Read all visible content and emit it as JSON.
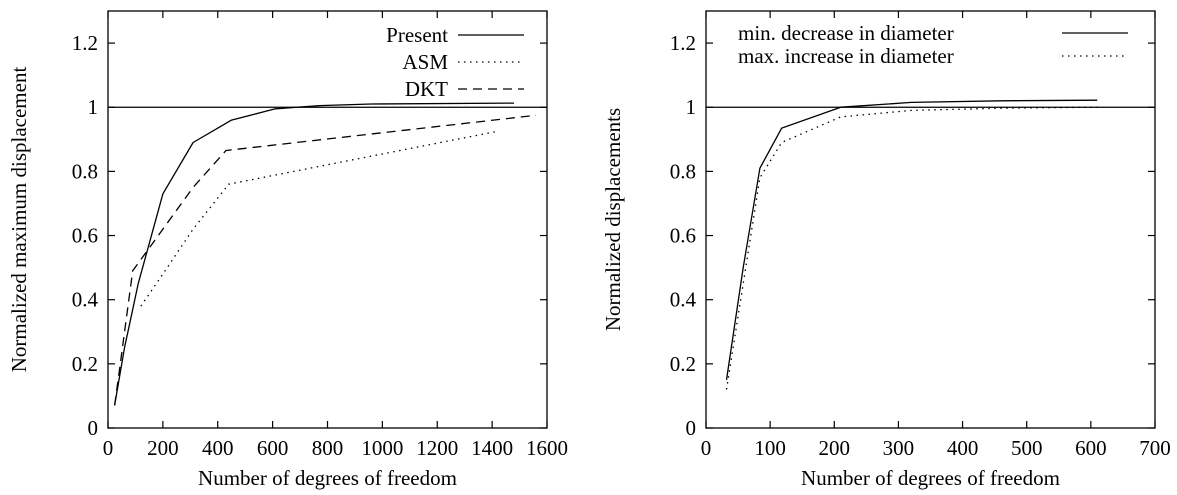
{
  "chart_data": [
    {
      "type": "line",
      "xlabel": "Number of degrees of freedom",
      "ylabel": "Normalized maximum displacement",
      "xlim": [
        0,
        1600
      ],
      "ylim": [
        0,
        1.3
      ],
      "xticks": [
        0,
        200,
        400,
        600,
        800,
        1000,
        1200,
        1400,
        1600
      ],
      "xtick_labels": [
        "0",
        "200",
        "400",
        "600",
        "800",
        "1000",
        "1200",
        "1400",
        "1600"
      ],
      "yticks": [
        0,
        0.2,
        0.4,
        0.6,
        0.8,
        1,
        1.2
      ],
      "ytick_labels": [
        "0",
        "0.2",
        "0.4",
        "0.6",
        "0.8",
        "1",
        "1.2"
      ],
      "grid": false,
      "legend": "top-right",
      "reference_line": {
        "y": 1
      },
      "series": [
        {
          "name": "Present",
          "style": "solid",
          "x": [
            24,
            60,
            110,
            200,
            310,
            450,
            610,
            770,
            960,
            1480
          ],
          "y": [
            0.07,
            0.25,
            0.45,
            0.73,
            0.89,
            0.96,
            0.995,
            1.005,
            1.01,
            1.013
          ]
        },
        {
          "name": "ASM",
          "style": "dotted",
          "x": [
            120,
            200,
            310,
            440,
            1420
          ],
          "y": [
            0.38,
            0.48,
            0.62,
            0.76,
            0.925
          ]
        },
        {
          "name": "DKT",
          "style": "dashed",
          "x": [
            24,
            45,
            90,
            200,
            310,
            430,
            1560
          ],
          "y": [
            0.07,
            0.2,
            0.49,
            0.62,
            0.75,
            0.865,
            0.975
          ]
        }
      ]
    },
    {
      "type": "line",
      "xlabel": "Number of degrees of freedom",
      "ylabel": "Normalized displacements",
      "xlim": [
        0,
        700
      ],
      "ylim": [
        0,
        1.3
      ],
      "xticks": [
        0,
        100,
        200,
        300,
        400,
        500,
        600,
        700
      ],
      "xtick_labels": [
        "0",
        "100",
        "200",
        "300",
        "400",
        "500",
        "600",
        "700"
      ],
      "yticks": [
        0,
        0.2,
        0.4,
        0.6,
        0.8,
        1,
        1.2
      ],
      "ytick_labels": [
        "0",
        "0.2",
        "0.4",
        "0.6",
        "0.8",
        "1",
        "1.2"
      ],
      "grid": false,
      "legend": "top-right",
      "reference_line": {
        "y": 1
      },
      "series": [
        {
          "name": "min. decrease in diameter",
          "style": "solid",
          "x": [
            32,
            58,
            84,
            118,
            210,
            320,
            460,
            610
          ],
          "y": [
            0.15,
            0.5,
            0.81,
            0.935,
            1.0,
            1.015,
            1.02,
            1.022
          ]
        },
        {
          "name": "max. increase in diameter",
          "style": "dotted",
          "x": [
            32,
            58,
            84,
            118,
            210,
            320,
            460,
            610
          ],
          "y": [
            0.12,
            0.45,
            0.78,
            0.89,
            0.97,
            0.99,
            0.997,
            1.0
          ]
        }
      ]
    }
  ]
}
